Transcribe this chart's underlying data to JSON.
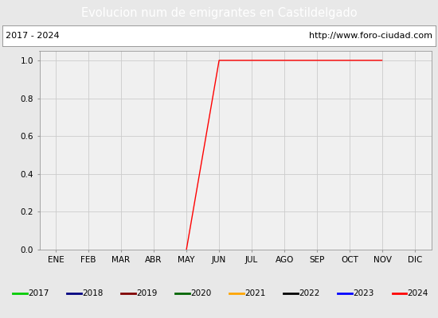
{
  "title": "Evolucion num de emigrantes en Castildelgado",
  "title_color": "white",
  "title_bg_color": "#4f81c7",
  "subtitle_left": "2017 - 2024",
  "subtitle_right": "http://www.foro-ciudad.com",
  "x_labels": [
    "ENE",
    "FEB",
    "MAR",
    "ABR",
    "MAY",
    "JUN",
    "JUL",
    "AGO",
    "SEP",
    "OCT",
    "NOV",
    "DIC"
  ],
  "ylim": [
    0.0,
    1.05
  ],
  "yticks": [
    0.0,
    0.2,
    0.4,
    0.6,
    0.8,
    1.0
  ],
  "series": [
    {
      "year": 2017,
      "color": "#00cc00",
      "data": [
        null,
        null,
        null,
        null,
        null,
        null,
        null,
        null,
        null,
        null,
        null,
        null
      ]
    },
    {
      "year": 2018,
      "color": "#000080",
      "data": [
        null,
        null,
        null,
        null,
        null,
        null,
        null,
        null,
        null,
        null,
        null,
        null
      ]
    },
    {
      "year": 2019,
      "color": "#800000",
      "data": [
        null,
        null,
        null,
        null,
        null,
        null,
        null,
        null,
        null,
        null,
        null,
        null
      ]
    },
    {
      "year": 2020,
      "color": "#006400",
      "data": [
        null,
        null,
        null,
        null,
        null,
        null,
        null,
        null,
        null,
        null,
        null,
        null
      ]
    },
    {
      "year": 2021,
      "color": "#ffa500",
      "data": [
        null,
        null,
        null,
        null,
        null,
        null,
        null,
        null,
        null,
        null,
        null,
        null
      ]
    },
    {
      "year": 2022,
      "color": "#000000",
      "data": [
        null,
        null,
        null,
        null,
        null,
        null,
        null,
        null,
        null,
        null,
        null,
        null
      ]
    },
    {
      "year": 2023,
      "color": "#0000ff",
      "data": [
        null,
        null,
        null,
        null,
        null,
        null,
        null,
        null,
        null,
        null,
        null,
        null
      ]
    },
    {
      "year": 2024,
      "color": "#ff0000",
      "data": [
        null,
        null,
        null,
        null,
        0.0,
        1.0,
        1.0,
        1.0,
        1.0,
        1.0,
        1.0,
        null
      ]
    }
  ],
  "outer_bg": "#e8e8e8",
  "plot_bg_color": "#f0f0f0",
  "grid_color": "#cccccc",
  "legend_bg": "#ffffff",
  "subtitle_bg": "#ffffff",
  "font_family": "DejaVu Sans"
}
